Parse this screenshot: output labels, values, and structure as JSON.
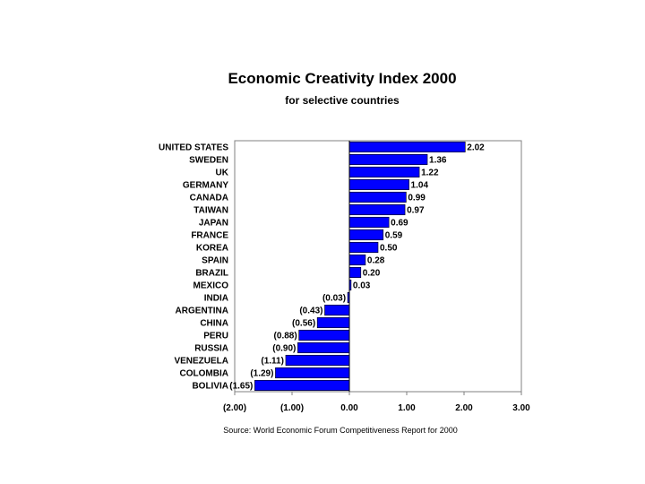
{
  "chart_data": {
    "type": "bar",
    "orientation": "horizontal",
    "title": "Economic Creativity Index 2000",
    "subtitle": "for selective countries",
    "source": "Source: World Economic Forum Competitiveness Report for 2000",
    "categories": [
      "UNITED STATES",
      "SWEDEN",
      "UK",
      "GERMANY",
      "CANADA",
      "TAIWAN",
      "JAPAN",
      "FRANCE",
      "KOREA",
      "SPAIN",
      "BRAZIL",
      "MEXICO",
      "INDIA",
      "ARGENTINA",
      "CHINA",
      "PERU",
      "RUSSIA",
      "VENEZUELA",
      "COLOMBIA",
      "BOLIVIA"
    ],
    "values": [
      2.02,
      1.36,
      1.22,
      1.04,
      0.99,
      0.97,
      0.69,
      0.59,
      0.5,
      0.28,
      0.2,
      0.03,
      -0.03,
      -0.43,
      -0.56,
      -0.88,
      -0.9,
      -1.11,
      -1.29,
      -1.65
    ],
    "value_labels": [
      "2.02",
      "1.36",
      "1.22",
      "1.04",
      "0.99",
      "0.97",
      "0.69",
      "0.59",
      "0.50",
      "0.28",
      "0.20",
      "0.03",
      "(0.03)",
      "(0.43)",
      "(0.56)",
      "(0.88)",
      "(0.90)",
      "(1.11)",
      "(1.29)",
      "(1.65)"
    ],
    "x_ticks": [
      -2,
      -1,
      0,
      1,
      2,
      3
    ],
    "x_tick_labels": [
      "(2.00)",
      "(1.00)",
      "0.00",
      "1.00",
      "2.00",
      "3.00"
    ],
    "xlim": [
      -2,
      3
    ],
    "grid": false,
    "bar_color": "#0000ff"
  }
}
